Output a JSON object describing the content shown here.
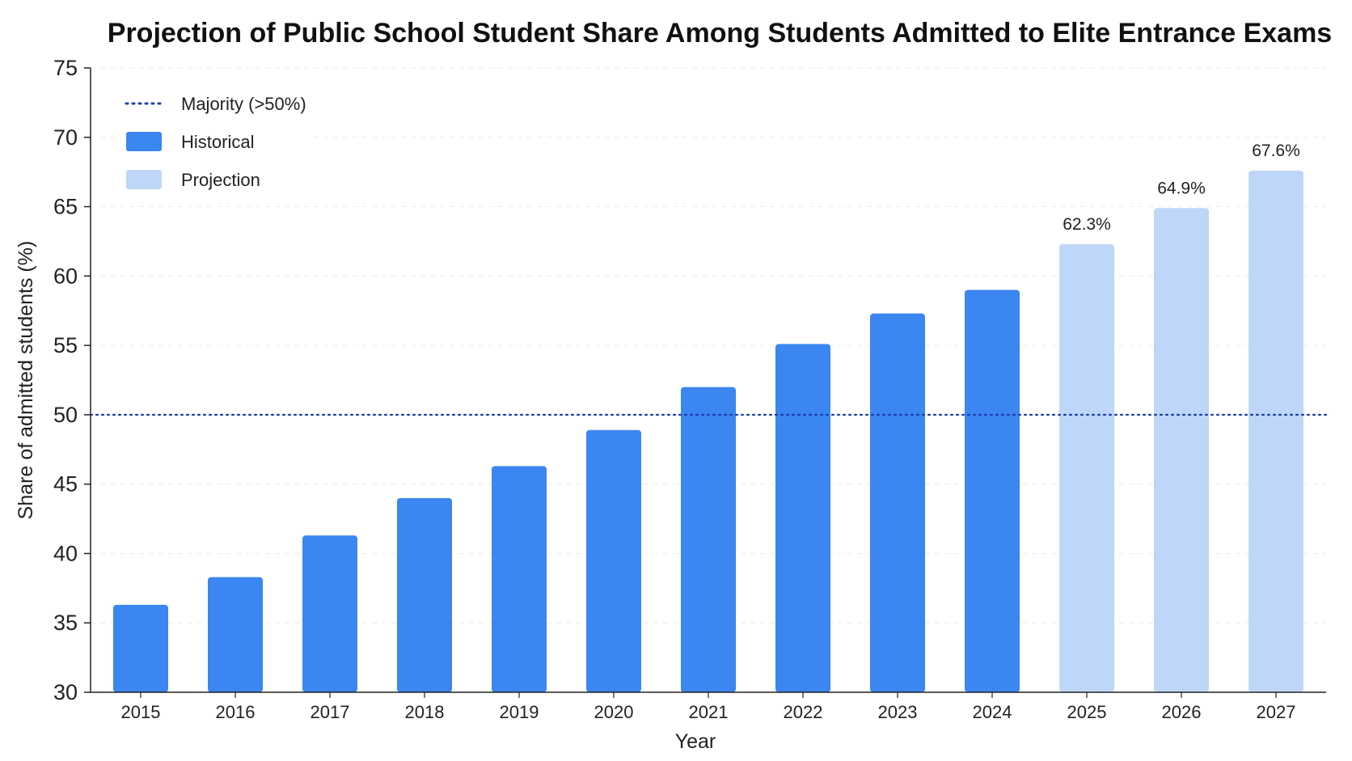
{
  "chart_data": {
    "type": "bar",
    "title": "Projection of Public School Student Share Among Students Admitted to Elite Entrance Exams",
    "xlabel": "Year",
    "ylabel": "Share of admitted students (%)",
    "ylim": [
      30,
      75
    ],
    "yticks": [
      30,
      35,
      40,
      45,
      50,
      55,
      60,
      65,
      70,
      75
    ],
    "categories": [
      "2015",
      "2016",
      "2017",
      "2018",
      "2019",
      "2020",
      "2021",
      "2022",
      "2023",
      "2024",
      "2025",
      "2026",
      "2027"
    ],
    "series": [
      {
        "name": "Historical",
        "color": "#3b86f0",
        "values": [
          36.3,
          38.3,
          41.3,
          44.0,
          46.3,
          48.9,
          52.0,
          55.1,
          57.3,
          59.0,
          null,
          null,
          null
        ]
      },
      {
        "name": "Projection",
        "color": "#bed7f8",
        "values": [
          null,
          null,
          null,
          null,
          null,
          null,
          null,
          null,
          null,
          null,
          62.3,
          64.9,
          67.6
        ],
        "labels": [
          "62.3%",
          "64.9%",
          "67.6%"
        ]
      }
    ],
    "reference_line": {
      "name": "Majority (>50%)",
      "value": 50,
      "style": "dotted",
      "color": "#1f3fae"
    },
    "grid": true,
    "legend_position": "top-left"
  }
}
